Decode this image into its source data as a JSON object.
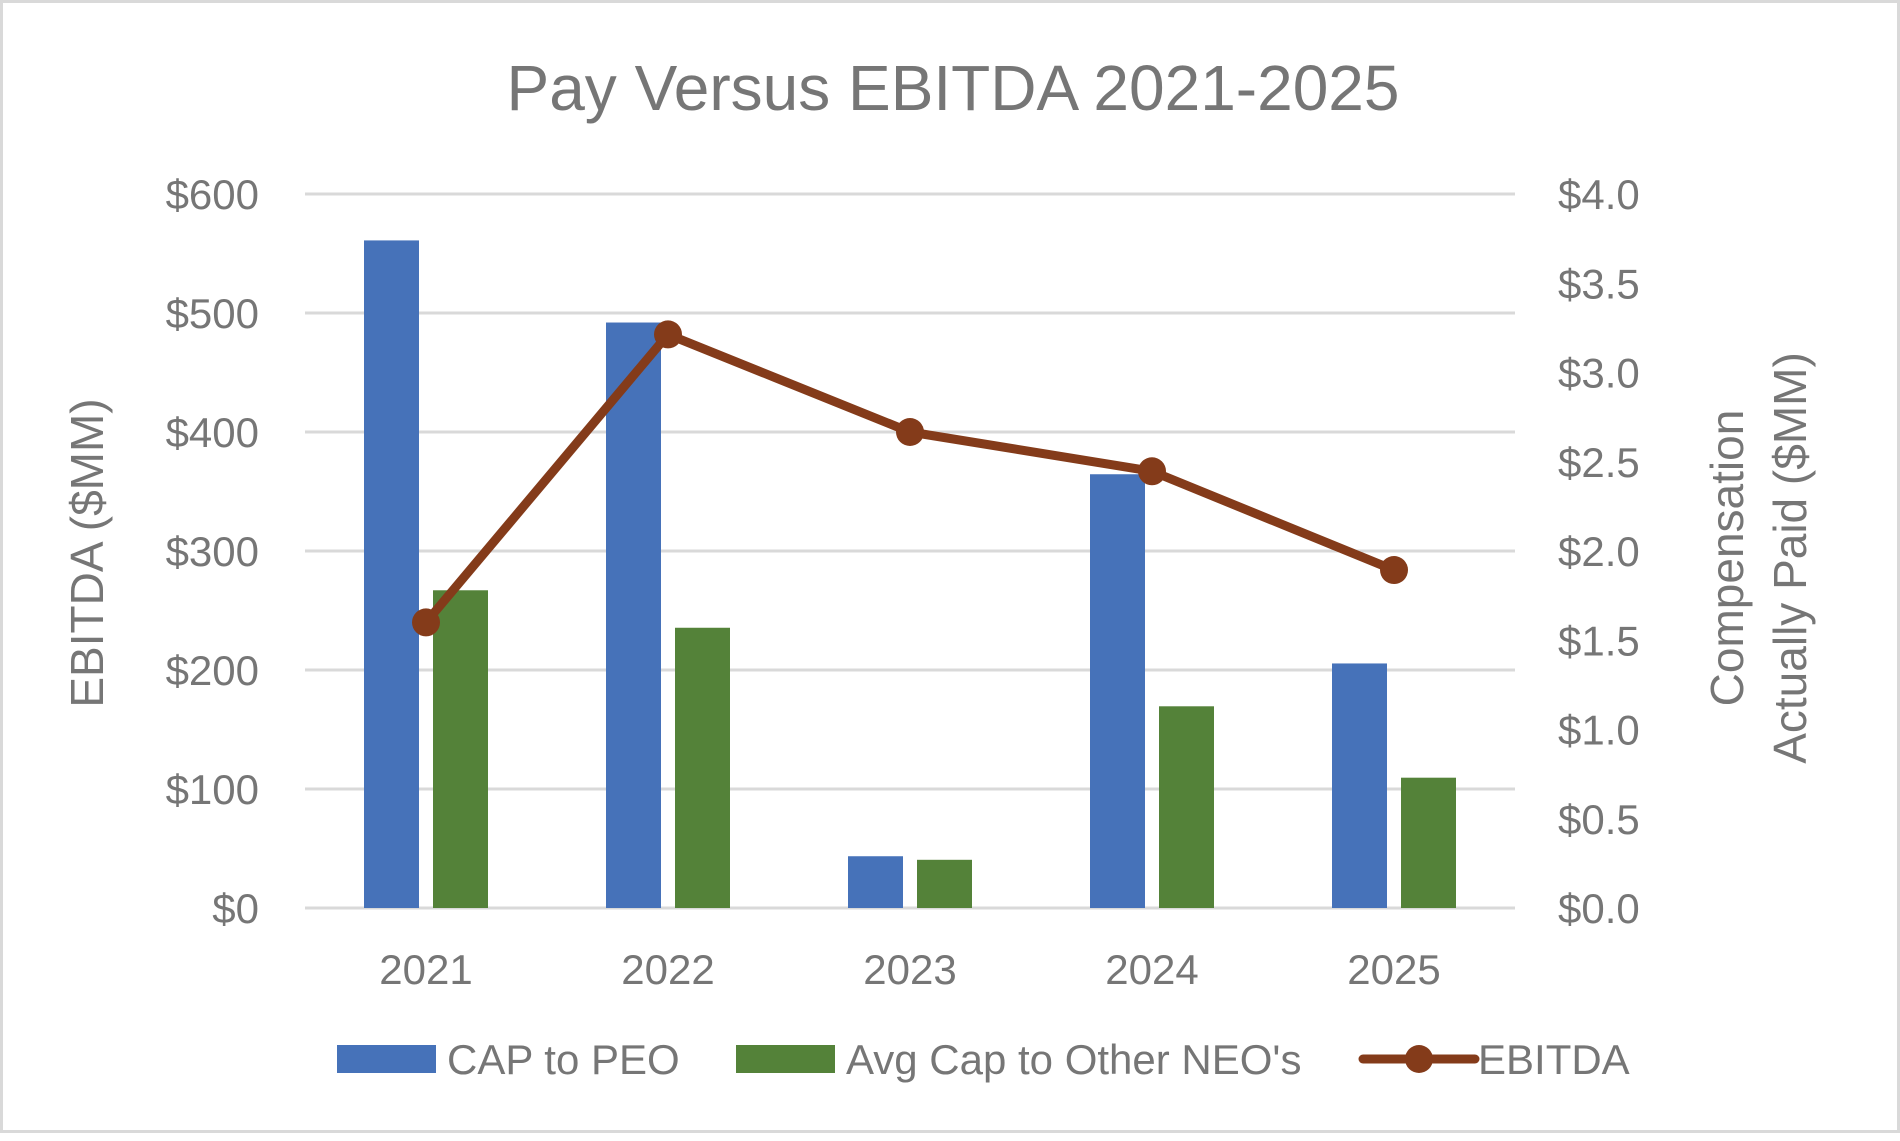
{
  "chart_data": {
    "type": "bar",
    "title": "Pay Versus EBITDA 2021-2025",
    "categories": [
      "2021",
      "2022",
      "2023",
      "2024",
      "2025"
    ],
    "ylabel_left": "EBITDA ($MM)",
    "ylabel_right_line1": "Compensation",
    "ylabel_right_line2": "Actually Paid ($MM)",
    "y_left": {
      "lim": [
        0,
        600
      ],
      "ticks": [
        0,
        100,
        200,
        300,
        400,
        500,
        600
      ],
      "tick_labels": [
        "$0",
        "$100",
        "$200",
        "$300",
        "$400",
        "$500",
        "$600"
      ]
    },
    "y_right": {
      "lim": [
        0,
        4
      ],
      "ticks": [
        0,
        0.5,
        1,
        1.5,
        2,
        2.5,
        3,
        3.5,
        4
      ],
      "tick_labels": [
        "$0.0",
        "$0.5",
        "$1.0",
        "$1.5",
        "$2.0",
        "$2.5",
        "$3.0",
        "$3.5",
        "$4.0"
      ]
    },
    "grid": true,
    "legend_position": "bottom",
    "series": [
      {
        "name": "CAP to PEO",
        "type": "bar",
        "axis": "right",
        "color": "#4672b9",
        "values": [
          3.74,
          3.28,
          0.29,
          2.43,
          1.37
        ]
      },
      {
        "name": "Avg Cap to Other NEO's",
        "type": "bar",
        "axis": "right",
        "color": "#548239",
        "values": [
          1.78,
          1.57,
          0.27,
          1.13,
          0.73
        ]
      },
      {
        "name": "EBITDA",
        "type": "line",
        "axis": "left",
        "color": "#843b1a",
        "values": [
          240,
          482,
          400,
          367,
          284
        ]
      }
    ]
  }
}
